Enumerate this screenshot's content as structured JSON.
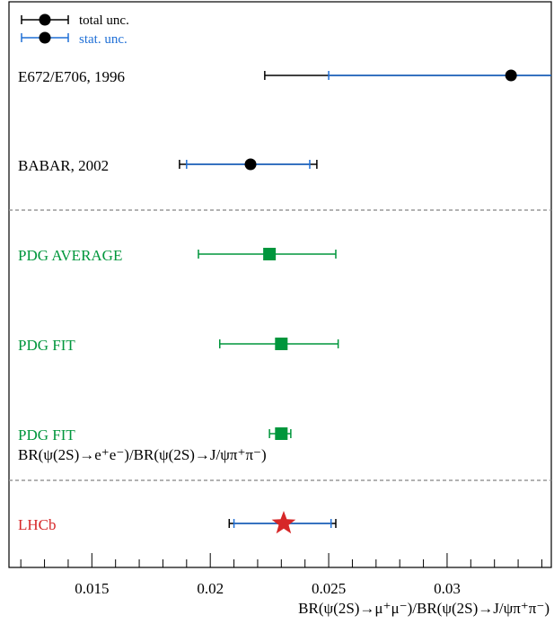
{
  "chart_data": {
    "type": "forest",
    "xlabel": "BR(ψ(2S)→μ⁺μ⁻)/BR(ψ(2S)→J/ψπ⁺π⁻)",
    "xlim": [
      0.0115,
      0.0344
    ],
    "ticks": [
      0.015,
      0.02,
      0.025,
      0.03
    ],
    "tick_labels": [
      "0.015",
      "0.02",
      "0.025",
      "0.03"
    ],
    "legend": {
      "placement": "top-left",
      "entries": [
        {
          "label": "total unc.",
          "color": "#000000"
        },
        {
          "label": "stat. unc.",
          "color": "#1f6fd6"
        }
      ]
    },
    "measurements": [
      {
        "label": "E672/E706, 1996",
        "label2": "",
        "color": "#000000",
        "marker": "circle",
        "value": 0.0327,
        "total": [
          0.0223,
          0.0344
        ],
        "stat": [
          0.025,
          0.0344
        ]
      },
      {
        "label": "BABAR, 2002",
        "label2": "",
        "color": "#000000",
        "marker": "circle",
        "value": 0.0217,
        "total": [
          0.0187,
          0.0245
        ],
        "stat": [
          0.019,
          0.0242
        ]
      },
      {
        "label": "PDG AVERAGE",
        "label2": "",
        "color": "#00963c",
        "marker": "square",
        "value": 0.0225,
        "total": [
          0.0195,
          0.0253
        ],
        "stat": null
      },
      {
        "label": "PDG FIT",
        "label2": "",
        "color": "#00963c",
        "marker": "square",
        "value": 0.023,
        "total": [
          0.0204,
          0.0254
        ],
        "stat": null
      },
      {
        "label": "PDG FIT",
        "label2": "BR(ψ(2S)→e⁺e⁻)/BR(ψ(2S)→J/ψπ⁺π⁻)",
        "color": "#00963c",
        "marker": "square",
        "value": 0.023,
        "total": [
          0.0225,
          0.0234
        ],
        "stat": null
      },
      {
        "label": "LHCb",
        "label2": "",
        "color": "#d62728",
        "marker": "star",
        "value": 0.0231,
        "total": [
          0.0208,
          0.0253
        ],
        "stat": [
          0.021,
          0.0251
        ]
      }
    ],
    "colors": {
      "stat": "#1f6fd6",
      "total": "#000000",
      "separator": "#999999"
    }
  }
}
